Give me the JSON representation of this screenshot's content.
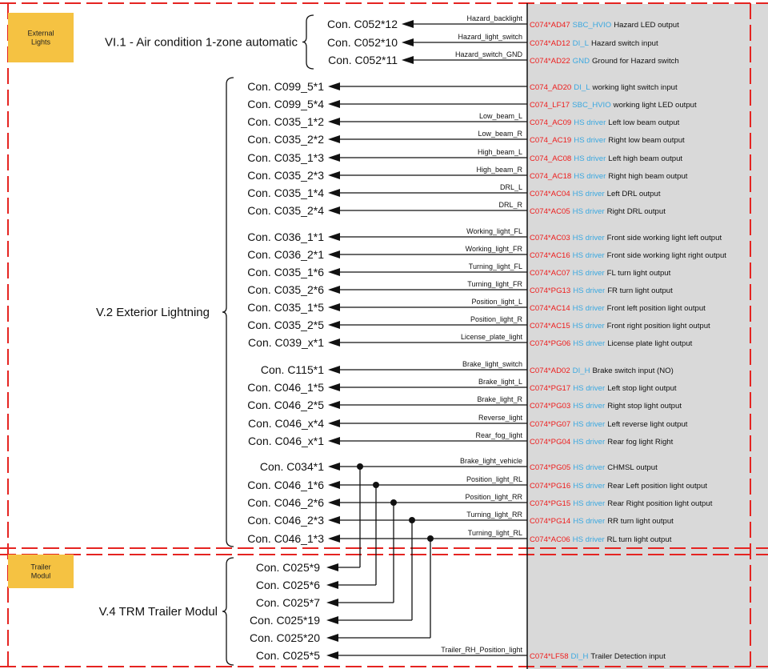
{
  "colors": {
    "border_red": "#e52421",
    "badge_yellow": "#f5c242",
    "panel_gray": "#d9d9d9",
    "pin_red": "#ee1c1c",
    "type_blue": "#3aa8e0",
    "line": "#111111"
  },
  "sections": [
    {
      "label": "External Lights"
    },
    {
      "label": "Trailer Modul"
    }
  ],
  "groups": [
    {
      "label": "VI.1 - Air condition 1-zone automatic",
      "rows": [
        0,
        2
      ]
    },
    {
      "label": "V.2 Exterior Lightning",
      "rows": [
        3,
        26
      ]
    },
    {
      "label": "V.4 TRM Trailer Modul",
      "rows": [
        27,
        32
      ]
    }
  ],
  "rows": [
    {
      "con": "Con. C052*12",
      "signal": "Hazard_backlight",
      "pin": "C074*AD47",
      "type": "SBC_HVIO",
      "desc": "Hazard LED output"
    },
    {
      "con": "Con. C052*10",
      "signal": "Hazard_light_switch",
      "pin": "C074*AD12",
      "type": "DI_L",
      "desc": "Hazard switch input"
    },
    {
      "con": "Con. C052*11",
      "signal": "Hazard_switch_GND",
      "pin": "C074*AD22",
      "type": "GND",
      "desc": "Ground for Hazard switch"
    },
    {
      "con": "Con. C099_5*1",
      "signal": "",
      "pin": "C074_AD20",
      "type": "DI_L",
      "desc": "working light switch input"
    },
    {
      "con": "Con. C099_5*4",
      "signal": "",
      "pin": "C074_LF17",
      "type": "SBC_HVIO",
      "desc": "working light LED output"
    },
    {
      "con": "Con. C035_1*2",
      "signal": "Low_beam_L",
      "pin": "C074_AC09",
      "type": "HS driver",
      "desc": "Left low beam output"
    },
    {
      "con": "Con. C035_2*2",
      "signal": "Low_beam_R",
      "pin": "C074_AC19",
      "type": "HS driver",
      "desc": "Right low beam output"
    },
    {
      "con": "Con. C035_1*3",
      "signal": "High_beam_L",
      "pin": "C074_AC08",
      "type": "HS driver",
      "desc": "Left high beam output"
    },
    {
      "con": "Con. C035_2*3",
      "signal": "High_beam_R",
      "pin": "C074_AC18",
      "type": "HS driver",
      "desc": "Right high beam output"
    },
    {
      "con": "Con. C035_1*4",
      "signal": "DRL_L",
      "pin": "C074*AC04",
      "type": "HS driver",
      "desc": "Left DRL output"
    },
    {
      "con": "Con. C035_2*4",
      "signal": "DRL_R",
      "pin": "C074*AC05",
      "type": "HS driver",
      "desc": "Right DRL output"
    },
    {
      "con": "Con. C036_1*1",
      "signal": "Working_light_FL",
      "pin": "C074*AC03",
      "type": "HS driver",
      "desc": "Front side working light left output"
    },
    {
      "con": "Con. C036_2*1",
      "signal": "Working_light_FR",
      "pin": "C074*AC16",
      "type": "HS driver",
      "desc": "Front side working light right output"
    },
    {
      "con": "Con. C035_1*6",
      "signal": "Turning_light_FL",
      "pin": "C074*AC07",
      "type": "HS driver",
      "desc": "FL turn light output"
    },
    {
      "con": "Con. C035_2*6",
      "signal": "Turning_light_FR",
      "pin": "C074*PG13",
      "type": "HS driver",
      "desc": "FR turn light output"
    },
    {
      "con": "Con. C035_1*5",
      "signal": "Position_light_L",
      "pin": "C074*AC14",
      "type": "HS driver",
      "desc": "Front left position light output"
    },
    {
      "con": "Con. C035_2*5",
      "signal": "Position_light_R",
      "pin": "C074*AC15",
      "type": "HS driver",
      "desc": "Front right position light output"
    },
    {
      "con": "Con. C039_x*1",
      "signal": "License_plate_light",
      "pin": "C074*PG06",
      "type": "HS driver",
      "desc": "License plate light output"
    },
    {
      "con": "Con. C115*1",
      "signal": "Brake_light_switch",
      "pin": "C074*AD02",
      "type": "DI_H",
      "desc": "Brake switch input (NO)"
    },
    {
      "con": "Con. C046_1*5",
      "signal": "Brake_light_L",
      "pin": "C074*PG17",
      "type": "HS driver",
      "desc": "Left stop light output"
    },
    {
      "con": "Con. C046_2*5",
      "signal": "Brake_light_R",
      "pin": "C074*PG03",
      "type": "HS driver",
      "desc": "Right stop light output"
    },
    {
      "con": "Con. C046_x*4",
      "signal": "Reverse_light",
      "pin": "C074*PG07",
      "type": "HS driver",
      "desc": "Left reverse light output"
    },
    {
      "con": "Con. C046_x*1",
      "signal": "Rear_fog_light",
      "pin": "C074*PG04",
      "type": "HS driver",
      "desc": "Rear fog light Right"
    },
    {
      "con": "Con. C034*1",
      "signal": "Brake_light_vehicle",
      "pin": "C074*PG05",
      "type": "HS driver",
      "desc": "CHMSL output"
    },
    {
      "con": "Con. C046_1*6",
      "signal": "Position_light_RL",
      "pin": "C074*PG16",
      "type": "HS driver",
      "desc": "Rear Left position light output"
    },
    {
      "con": "Con. C046_2*6",
      "signal": "Position_light_RR",
      "pin": "C074*PG15",
      "type": "HS driver",
      "desc": "Rear Right position light output"
    },
    {
      "con": "Con. C046_2*3",
      "signal": "Turning_light_RR",
      "pin": "C074*PG14",
      "type": "HS driver",
      "desc": "RR turn light output"
    },
    {
      "con": "Con. C046_1*3",
      "signal": "Turning_light_RL",
      "pin": "C074*AC06",
      "type": "HS driver",
      "desc": "RL turn light output"
    },
    {
      "con": "Con. C025*9",
      "signal": "",
      "pin": "",
      "type": "",
      "desc": ""
    },
    {
      "con": "Con. C025*6",
      "signal": "",
      "pin": "",
      "type": "",
      "desc": ""
    },
    {
      "con": "Con. C025*7",
      "signal": "",
      "pin": "",
      "type": "",
      "desc": ""
    },
    {
      "con": "Con. C025*19",
      "signal": "",
      "pin": "",
      "type": "",
      "desc": ""
    },
    {
      "con": "Con. C025*20",
      "signal": "",
      "pin": "",
      "type": "",
      "desc": ""
    },
    {
      "con": "Con. C025*5",
      "signal": "Trailer_RH_Position_light",
      "pin": "C074*LF58",
      "type": "DI_H",
      "desc": "Trailer Detection input"
    }
  ],
  "trailer_links": [
    {
      "from_row": 23,
      "to_row": 28
    },
    {
      "from_row": 24,
      "to_row": 29
    },
    {
      "from_row": 25,
      "to_row": 30
    },
    {
      "from_row": 26,
      "to_row": 31
    },
    {
      "from_row": 27,
      "to_row": 32
    }
  ]
}
